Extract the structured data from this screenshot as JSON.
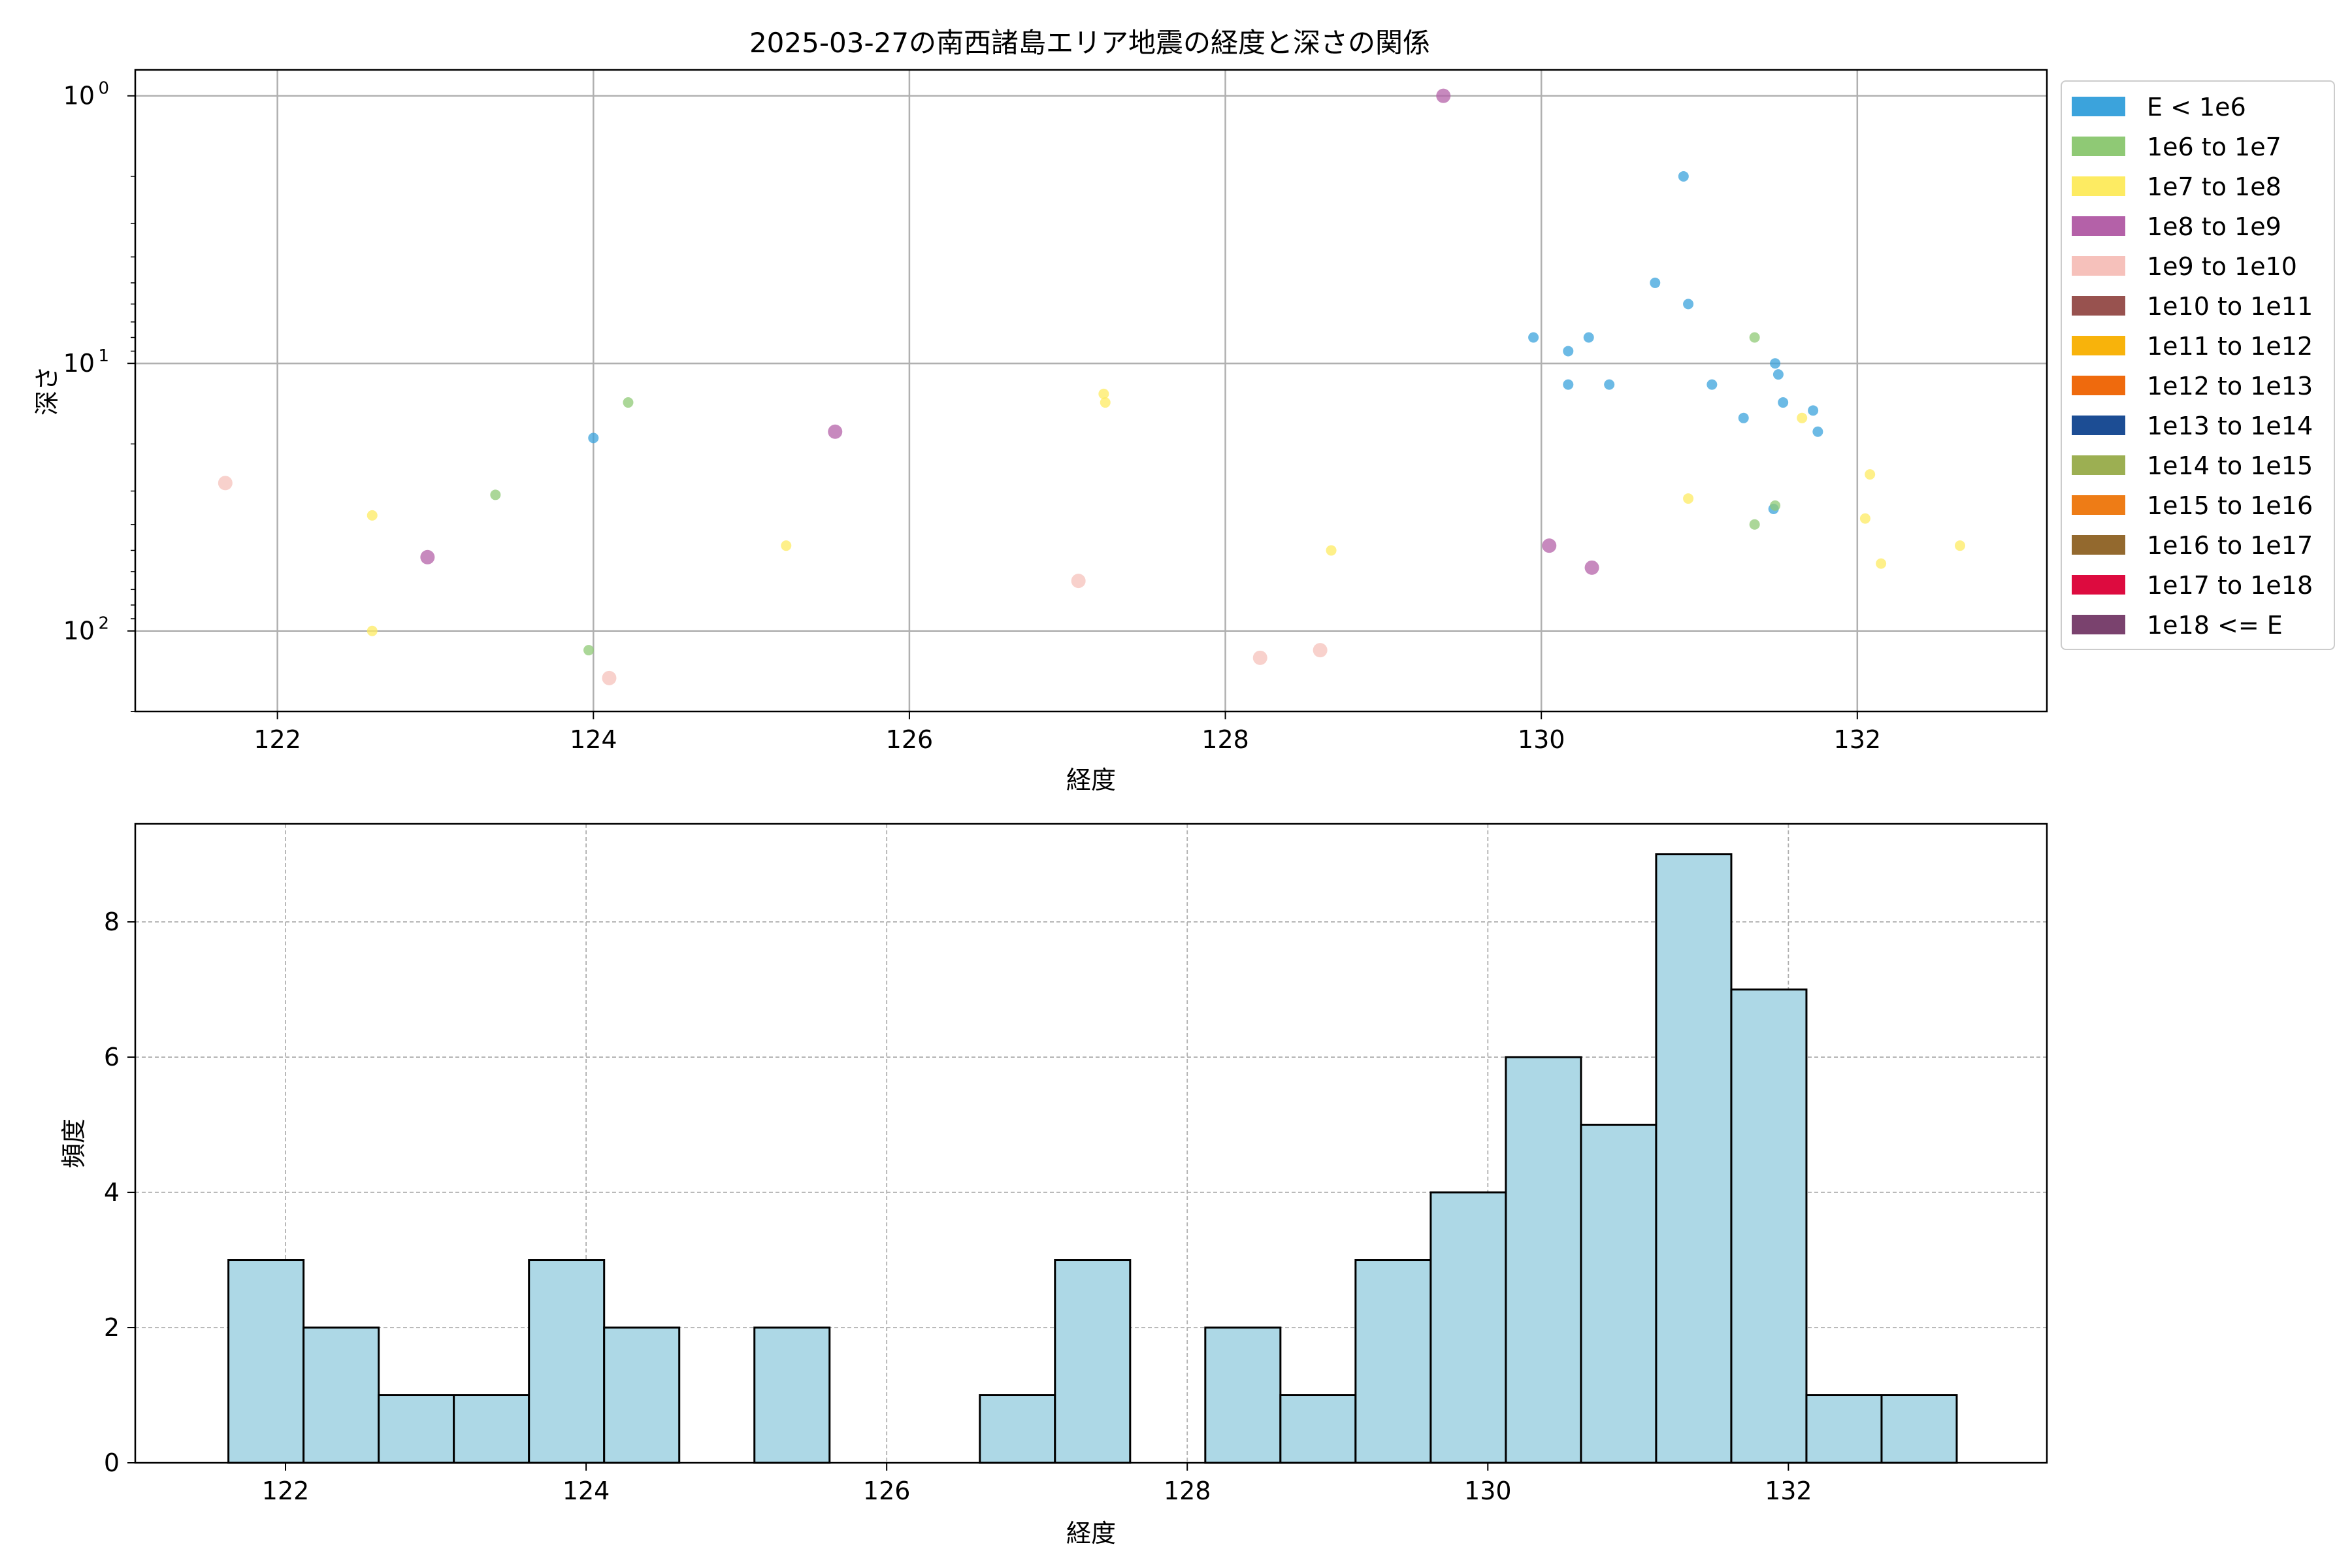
{
  "chart_data": [
    {
      "type": "scatter",
      "title": "2025-03-27の南西諸島エリア地震の経度と深さの関係",
      "xlabel": "経度",
      "ylabel": "深さ",
      "xlim": [
        121.1,
        133.2
      ],
      "ylim": [
        200,
        0.8
      ],
      "yscale": "log",
      "y_inverted": true,
      "grid": true,
      "xticks": [
        122,
        124,
        126,
        128,
        130,
        132
      ],
      "yticks": [
        {
          "value": 1,
          "base": "10",
          "exp": "0"
        },
        {
          "value": 10,
          "base": "10",
          "exp": "1"
        },
        {
          "value": 100,
          "base": "10",
          "exp": "2"
        }
      ],
      "legend_position": "outside-right",
      "legend": [
        {
          "label": "E < 1e6",
          "color": "#3ba3dc"
        },
        {
          "label": "1e6 to 1e7",
          "color": "#8fc975"
        },
        {
          "label": "1e7 to 1e8",
          "color": "#fdeb62"
        },
        {
          "label": "1e8 to 1e9",
          "color": "#b461a8"
        },
        {
          "label": "1e9 to 1e10",
          "color": "#f6c1bb"
        },
        {
          "label": "1e10 to 1e11",
          "color": "#98524f"
        },
        {
          "label": "1e11 to 1e12",
          "color": "#f8b30b"
        },
        {
          "label": "1e12 to 1e13",
          "color": "#ef6a0d"
        },
        {
          "label": "1e13 to 1e14",
          "color": "#1c4d94"
        },
        {
          "label": "1e14 to 1e15",
          "color": "#9caf52"
        },
        {
          "label": "1e15 to 1e16",
          "color": "#ee7c16"
        },
        {
          "label": "1e16 to 1e17",
          "color": "#93692e"
        },
        {
          "label": "1e17 to 1e18",
          "color": "#dd0b3f"
        },
        {
          "label": "1e18 <= E",
          "color": "#7a426e"
        }
      ],
      "series": [
        {
          "name": "E < 1e6",
          "color": "#3ba3dc",
          "points": [
            [
              124.0,
              19
            ],
            [
              129.95,
              8
            ],
            [
              130.17,
              9
            ],
            [
              130.3,
              8
            ],
            [
              130.17,
              12
            ],
            [
              130.43,
              12
            ],
            [
              130.72,
              5
            ],
            [
              130.9,
              2
            ],
            [
              130.93,
              6
            ],
            [
              131.08,
              12
            ],
            [
              131.28,
              16
            ],
            [
              131.48,
              10
            ],
            [
              131.5,
              11
            ],
            [
              131.53,
              14
            ],
            [
              131.72,
              15
            ],
            [
              131.75,
              18
            ],
            [
              131.47,
              35
            ]
          ]
        },
        {
          "name": "1e6 to 1e7",
          "color": "#8fc975",
          "points": [
            [
              124.22,
              14
            ],
            [
              123.38,
              31
            ],
            [
              123.97,
              118
            ],
            [
              131.35,
              8
            ],
            [
              131.35,
              40
            ],
            [
              131.48,
              34
            ]
          ]
        },
        {
          "name": "1e7 to 1e8",
          "color": "#fdeb62",
          "points": [
            [
              122.6,
              37
            ],
            [
              122.6,
              100
            ],
            [
              125.22,
              48
            ],
            [
              127.23,
              13
            ],
            [
              127.24,
              14
            ],
            [
              128.67,
              50
            ],
            [
              130.93,
              32
            ],
            [
              131.65,
              16
            ],
            [
              132.05,
              38
            ],
            [
              132.08,
              26
            ],
            [
              132.15,
              56
            ],
            [
              132.65,
              48
            ]
          ]
        },
        {
          "name": "1e8 to 1e9",
          "color": "#b461a8",
          "points": [
            [
              122.95,
              53
            ],
            [
              125.53,
              18
            ],
            [
              129.38,
              1
            ],
            [
              130.05,
              48
            ],
            [
              130.32,
              58
            ]
          ]
        },
        {
          "name": "1e9 to 1e10",
          "color": "#f6c1bb",
          "points": [
            [
              121.67,
              28
            ],
            [
              124.1,
              150
            ],
            [
              127.07,
              65
            ],
            [
              128.22,
              126
            ],
            [
              128.6,
              118
            ]
          ]
        }
      ]
    },
    {
      "type": "bar",
      "subtype": "histogram",
      "title": "",
      "xlabel": "経度",
      "ylabel": "頻度",
      "xlim": [
        121.0,
        133.72
      ],
      "ylim": [
        0,
        9.45
      ],
      "grid": true,
      "xticks": [
        122,
        124,
        126,
        128,
        130,
        132
      ],
      "yticks": [
        0,
        2,
        4,
        6,
        8
      ],
      "bar_color": "#add8e6",
      "edge_color": "#000000",
      "bins": [
        {
          "x0": 121.62,
          "x1": 122.12,
          "count": 3
        },
        {
          "x0": 122.12,
          "x1": 122.62,
          "count": 2
        },
        {
          "x0": 122.62,
          "x1": 123.12,
          "count": 1
        },
        {
          "x0": 123.12,
          "x1": 123.62,
          "count": 1
        },
        {
          "x0": 123.62,
          "x1": 124.12,
          "count": 3
        },
        {
          "x0": 124.12,
          "x1": 124.62,
          "count": 2
        },
        {
          "x0": 124.62,
          "x1": 125.12,
          "count": 0
        },
        {
          "x0": 125.12,
          "x1": 125.62,
          "count": 2
        },
        {
          "x0": 125.62,
          "x1": 126.12,
          "count": 0
        },
        {
          "x0": 126.12,
          "x1": 126.62,
          "count": 0
        },
        {
          "x0": 126.62,
          "x1": 127.12,
          "count": 1
        },
        {
          "x0": 127.12,
          "x1": 127.62,
          "count": 3
        },
        {
          "x0": 127.62,
          "x1": 128.12,
          "count": 0
        },
        {
          "x0": 128.12,
          "x1": 128.62,
          "count": 2
        },
        {
          "x0": 128.62,
          "x1": 129.12,
          "count": 1
        },
        {
          "x0": 129.12,
          "x1": 129.62,
          "count": 3
        },
        {
          "x0": 129.62,
          "x1": 130.12,
          "count": 4
        },
        {
          "x0": 130.12,
          "x1": 130.62,
          "count": 6
        },
        {
          "x0": 130.62,
          "x1": 131.12,
          "count": 5
        },
        {
          "x0": 131.12,
          "x1": 131.62,
          "count": 9
        },
        {
          "x0": 131.62,
          "x1": 132.12,
          "count": 7
        },
        {
          "x0": 132.12,
          "x1": 132.62,
          "count": 1
        },
        {
          "x0": 132.62,
          "x1": 133.12,
          "count": 1
        }
      ]
    }
  ]
}
